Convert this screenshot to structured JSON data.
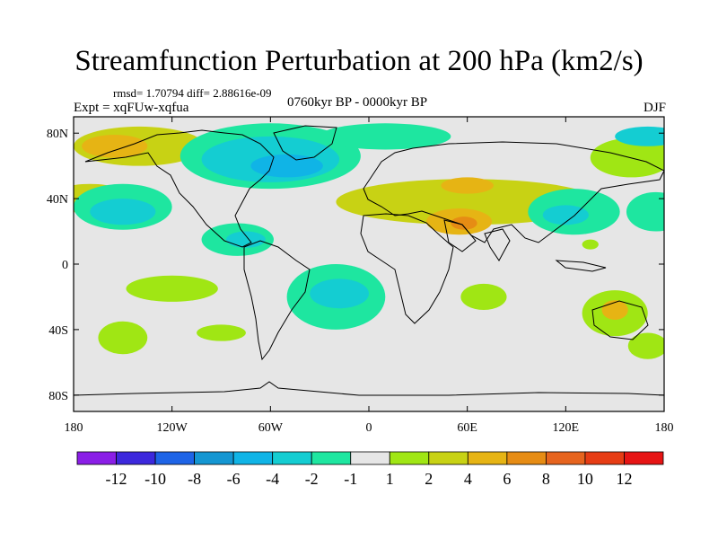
{
  "chart_data": {
    "type": "heatmap",
    "title": "Streamfunction Perturbation at 200 hPa (km2/s)",
    "stats_text": "rmsd= 1.70794 diff= 2.88616e-09",
    "left_label": "Expt = xqFUw-xqfua",
    "center_label": "0760kyr BP - 0000kyr BP",
    "right_label": "DJF",
    "x_ticks": [
      {
        "value": -180,
        "label": "180"
      },
      {
        "value": -120,
        "label": "120W"
      },
      {
        "value": -60,
        "label": "60W"
      },
      {
        "value": 0,
        "label": "0"
      },
      {
        "value": 60,
        "label": "60E"
      },
      {
        "value": 120,
        "label": "120E"
      },
      {
        "value": 180,
        "label": "180"
      }
    ],
    "y_ticks": [
      {
        "value": 80,
        "label": "80N"
      },
      {
        "value": 40,
        "label": "40N"
      },
      {
        "value": 0,
        "label": "0"
      },
      {
        "value": -40,
        "label": "40S"
      },
      {
        "value": -80,
        "label": "80S"
      }
    ],
    "xlim": [
      -180,
      180
    ],
    "ylim": [
      -90,
      90
    ],
    "colorbar": {
      "levels": [
        "-12",
        "-10",
        "-8",
        "-6",
        "-4",
        "-2",
        "-1",
        "1",
        "2",
        "4",
        "6",
        "8",
        "10",
        "12"
      ],
      "colors": [
        "#8a1ee6",
        "#3c28dc",
        "#1e64e6",
        "#1496d2",
        "#10b4e6",
        "#14cdd2",
        "#1ee6a0",
        "#e6e6e6",
        "#a0e614",
        "#c8d214",
        "#e6b414",
        "#e68c14",
        "#e6641e",
        "#e63c14",
        "#e61414"
      ]
    },
    "regions": [
      {
        "fill": "#c8d214",
        "lon": -140,
        "lat": 72,
        "rx": 40,
        "ry": 12
      },
      {
        "fill": "#e6b414",
        "lon": -155,
        "lat": 72,
        "rx": 20,
        "ry": 7
      },
      {
        "fill": "#1ee6a0",
        "lon": -60,
        "lat": 66,
        "rx": 55,
        "ry": 20
      },
      {
        "fill": "#14cdd2",
        "lon": -60,
        "lat": 64,
        "rx": 42,
        "ry": 14
      },
      {
        "fill": "#10b4e6",
        "lon": -50,
        "lat": 60,
        "rx": 22,
        "ry": 7
      },
      {
        "fill": "#1ee6a0",
        "lon": 10,
        "lat": 78,
        "rx": 40,
        "ry": 8
      },
      {
        "fill": "#c8d214",
        "lon": 60,
        "lat": 38,
        "rx": 80,
        "ry": 14
      },
      {
        "fill": "#e6b414",
        "lon": 60,
        "lat": 48,
        "rx": 16,
        "ry": 5
      },
      {
        "fill": "#e6b414",
        "lon": 55,
        "lat": 26,
        "rx": 20,
        "ry": 8
      },
      {
        "fill": "#e68c14",
        "lon": 58,
        "lat": 25,
        "rx": 8,
        "ry": 4
      },
      {
        "fill": "#a0e614",
        "lon": 160,
        "lat": 65,
        "rx": 25,
        "ry": 12
      },
      {
        "fill": "#14cdd2",
        "lon": 170,
        "lat": 78,
        "rx": 20,
        "ry": 6
      },
      {
        "fill": "#c8d214",
        "lon": -170,
        "lat": 40,
        "rx": 25,
        "ry": 9
      },
      {
        "fill": "#1ee6a0",
        "lon": -150,
        "lat": 35,
        "rx": 30,
        "ry": 14
      },
      {
        "fill": "#14cdd2",
        "lon": -150,
        "lat": 32,
        "rx": 20,
        "ry": 8
      },
      {
        "fill": "#1ee6a0",
        "lon": -80,
        "lat": 15,
        "rx": 22,
        "ry": 10
      },
      {
        "fill": "#14cdd2",
        "lon": -75,
        "lat": 15,
        "rx": 12,
        "ry": 5
      },
      {
        "fill": "#1ee6a0",
        "lon": 125,
        "lat": 32,
        "rx": 28,
        "ry": 14
      },
      {
        "fill": "#14cdd2",
        "lon": 120,
        "lat": 30,
        "rx": 14,
        "ry": 6
      },
      {
        "fill": "#1ee6a0",
        "lon": 175,
        "lat": 32,
        "rx": 18,
        "ry": 12
      },
      {
        "fill": "#a0e614",
        "lon": -120,
        "lat": -15,
        "rx": 28,
        "ry": 8
      },
      {
        "fill": "#1ee6a0",
        "lon": -20,
        "lat": -20,
        "rx": 30,
        "ry": 20
      },
      {
        "fill": "#14cdd2",
        "lon": -18,
        "lat": -18,
        "rx": 18,
        "ry": 9
      },
      {
        "fill": "#a0e614",
        "lon": 70,
        "lat": -20,
        "rx": 14,
        "ry": 8
      },
      {
        "fill": "#a0e614",
        "lon": 150,
        "lat": -30,
        "rx": 20,
        "ry": 14
      },
      {
        "fill": "#e6b414",
        "lon": 150,
        "lat": -28,
        "rx": 8,
        "ry": 6
      },
      {
        "fill": "#a0e614",
        "lon": -150,
        "lat": -45,
        "rx": 15,
        "ry": 10
      },
      {
        "fill": "#a0e614",
        "lon": -90,
        "lat": -42,
        "rx": 15,
        "ry": 5
      },
      {
        "fill": "#a0e614",
        "lon": 170,
        "lat": -50,
        "rx": 12,
        "ry": 8
      },
      {
        "fill": "#a0e614",
        "lon": 135,
        "lat": 12,
        "rx": 5,
        "ry": 3
      }
    ]
  }
}
